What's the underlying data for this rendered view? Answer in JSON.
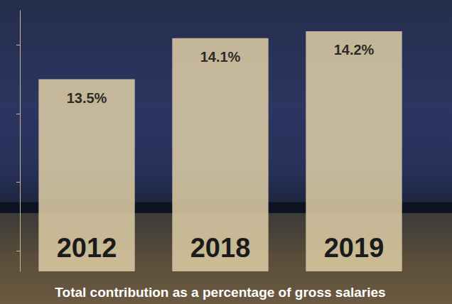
{
  "chart_data": {
    "type": "bar",
    "xlabel": "Total contribution as a percentage of gross salaries",
    "categories": [
      "2012",
      "2018",
      "2019"
    ],
    "values": [
      13.5,
      14.1,
      14.2
    ],
    "value_labels": [
      "13.5%",
      "14.1%",
      "14.2%"
    ],
    "color": "#d9c9a3",
    "ylim": [
      10.7,
      14.5
    ],
    "yticks": [
      11,
      12,
      13,
      14
    ],
    "grid": false,
    "data_labels": true,
    "tick_labels": "x"
  }
}
